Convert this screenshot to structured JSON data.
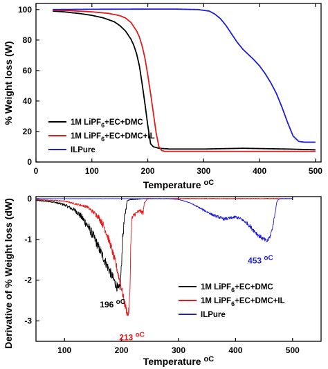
{
  "colors": {
    "black": "#000000",
    "red": "#e41a1c",
    "blue": "#1f1fd6"
  },
  "chart_data": [
    {
      "type": "line",
      "xlabel": "Temperature",
      "xlabel_unit": "oC",
      "ylabel": "%  Weight loss (W)",
      "xlim": [
        0,
        510
      ],
      "ylim": [
        0,
        104
      ],
      "xticks": [
        0,
        100,
        200,
        300,
        400,
        500
      ],
      "yticks": [
        0,
        20,
        40,
        60,
        80,
        100
      ],
      "grid": false,
      "legend_position": "bottom-left",
      "series": [
        {
          "name": "1M LiPF6+EC+DMC",
          "legend_parts": [
            "1M LiPF",
            "6",
            "+EC+DMC"
          ],
          "color": "#000000",
          "x": [
            30,
            50,
            80,
            100,
            120,
            140,
            150,
            160,
            170,
            175,
            180,
            185,
            190,
            195,
            200,
            205,
            210,
            220,
            240,
            300,
            370,
            450,
            500
          ],
          "y": [
            99,
            98.5,
            97.3,
            96.2,
            94.6,
            92,
            89.5,
            86,
            80.5,
            76.5,
            71,
            63,
            51,
            38,
            24,
            12,
            10,
            9,
            8.5,
            8.5,
            9,
            8.5,
            8
          ]
        },
        {
          "name": "1M LiPF6+EC+DMC+IL",
          "legend_parts": [
            "1M LiPF",
            "6",
            "+EC+DMC+IL"
          ],
          "color": "#e41a1c",
          "x": [
            30,
            60,
            100,
            130,
            150,
            160,
            170,
            180,
            185,
            190,
            195,
            200,
            205,
            210,
            215,
            220,
            225,
            230,
            240,
            300,
            400,
            500
          ],
          "y": [
            99.5,
            99.3,
            98.5,
            97.5,
            96,
            94.5,
            91.5,
            86,
            82,
            76,
            68,
            57,
            45,
            32,
            19,
            10,
            7.5,
            7,
            7,
            7,
            7,
            7
          ]
        },
        {
          "name": "ILPure",
          "legend_parts": [
            "ILPure",
            "",
            ""
          ],
          "color": "#1f1fd6",
          "x": [
            30,
            100,
            200,
            250,
            290,
            310,
            320,
            330,
            340,
            350,
            360,
            370,
            380,
            390,
            400,
            410,
            420,
            430,
            440,
            450,
            460,
            470,
            480,
            490,
            500
          ],
          "y": [
            100,
            100.2,
            100.3,
            100.3,
            100,
            99,
            97,
            94,
            89.5,
            84,
            78.5,
            74,
            70.5,
            67,
            63,
            58,
            52,
            45,
            36,
            26,
            17,
            13.5,
            13,
            13,
            13
          ]
        }
      ]
    },
    {
      "type": "line",
      "xlabel": "Temperature",
      "xlabel_unit": "oC",
      "ylabel": "Derivative of  %  Weight loss (dW)",
      "xlim": [
        50,
        550
      ],
      "ylim": [
        -3.5,
        0.05
      ],
      "xticks": [
        100,
        200,
        300,
        400,
        500
      ],
      "yticks": [
        0,
        -1,
        -2,
        -3
      ],
      "grid": false,
      "legend_position": "bottom-right",
      "annotations": [
        {
          "text": "196",
          "unit": "oC",
          "x": 196,
          "y": -2.4,
          "color": "#000000"
        },
        {
          "text": "213",
          "unit": "oC",
          "x": 213,
          "y": -2.9,
          "color": "#e41a1c"
        },
        {
          "text": "453",
          "unit": "oC",
          "x": 453,
          "y": -1.25,
          "color": "#1f1fd6"
        }
      ],
      "series": [
        {
          "name": "1M LiPF6+EC+DMC",
          "legend_parts": [
            "1M LiPF",
            "6",
            "+EC+DMC"
          ],
          "color": "#000000",
          "noise": 0.12,
          "x": [
            50,
            80,
            100,
            120,
            130,
            140,
            150,
            160,
            170,
            180,
            190,
            195,
            198,
            200,
            202,
            205,
            210,
            215,
            220,
            230,
            240,
            300,
            400,
            500
          ],
          "y": [
            -0.04,
            -0.08,
            -0.15,
            -0.3,
            -0.45,
            -0.65,
            -0.9,
            -1.2,
            -1.5,
            -1.8,
            -2.1,
            -2.25,
            -2.1,
            -1.6,
            -1.0,
            -0.5,
            -0.05,
            -0.02,
            -0.02,
            -0.01,
            0,
            0,
            0,
            0
          ]
        },
        {
          "name": "1M LiPF6+EC+DMC+IL",
          "legend_parts": [
            "1M LiPF",
            "6",
            "+EC+DMC+IL"
          ],
          "color": "#e41a1c",
          "noise": 0.1,
          "x": [
            50,
            100,
            140,
            160,
            170,
            180,
            190,
            200,
            205,
            208,
            211,
            213,
            215,
            216,
            218,
            222,
            226,
            232,
            238,
            240,
            245,
            250,
            300,
            500
          ],
          "y": [
            -0.02,
            -0.06,
            -0.2,
            -0.45,
            -0.7,
            -1.1,
            -1.6,
            -2.2,
            -2.55,
            -2.7,
            -2.85,
            -2.75,
            -2.2,
            -1.2,
            -0.5,
            -0.4,
            -0.35,
            -0.3,
            -0.35,
            -0.1,
            -0.01,
            0,
            0,
            0
          ]
        },
        {
          "name": "ILPure",
          "legend_parts": [
            "ILPure",
            "",
            ""
          ],
          "color": "#1f1fd6",
          "noise": 0.05,
          "x": [
            50,
            200,
            280,
            300,
            320,
            340,
            360,
            370,
            380,
            390,
            400,
            410,
            420,
            430,
            440,
            450,
            455,
            460,
            465,
            470,
            472,
            475,
            480,
            500
          ],
          "y": [
            0,
            0,
            0,
            -0.02,
            -0.1,
            -0.25,
            -0.4,
            -0.45,
            -0.5,
            -0.48,
            -0.45,
            -0.5,
            -0.6,
            -0.75,
            -0.9,
            -1.0,
            -1.05,
            -0.95,
            -0.7,
            -0.3,
            -0.1,
            -0.02,
            0,
            0
          ]
        }
      ]
    }
  ]
}
